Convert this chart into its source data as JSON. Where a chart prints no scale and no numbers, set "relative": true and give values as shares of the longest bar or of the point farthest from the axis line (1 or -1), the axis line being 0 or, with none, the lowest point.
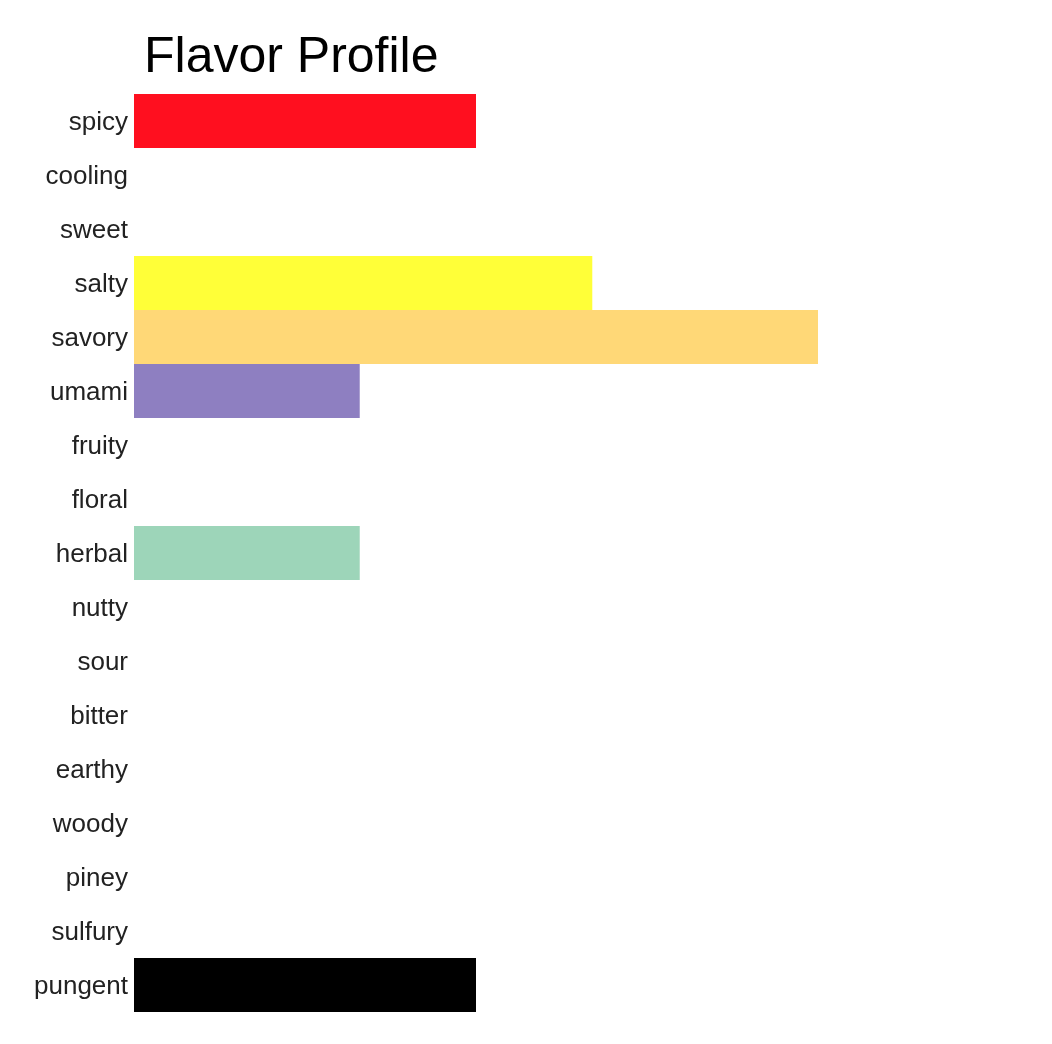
{
  "chart_data": {
    "type": "bar",
    "orientation": "horizontal",
    "relative": true,
    "title": "Flavor Profile",
    "categories": [
      "spicy",
      "cooling",
      "sweet",
      "salty",
      "savory",
      "umami",
      "fruity",
      "floral",
      "herbal",
      "nutty",
      "sour",
      "bitter",
      "earthy",
      "woody",
      "piney",
      "sulfury",
      "pungent"
    ],
    "values": [
      0.5,
      0,
      0,
      0.67,
      1,
      0.33,
      0,
      0,
      0.33,
      0,
      0,
      0,
      0,
      0,
      0,
      0,
      0.5
    ],
    "colors": [
      "#ff0f1f",
      null,
      null,
      "#ffff38",
      "#ffd877",
      "#8e7fc1",
      null,
      null,
      "#9dd5b9",
      null,
      null,
      null,
      null,
      null,
      null,
      null,
      "#000000"
    ]
  }
}
